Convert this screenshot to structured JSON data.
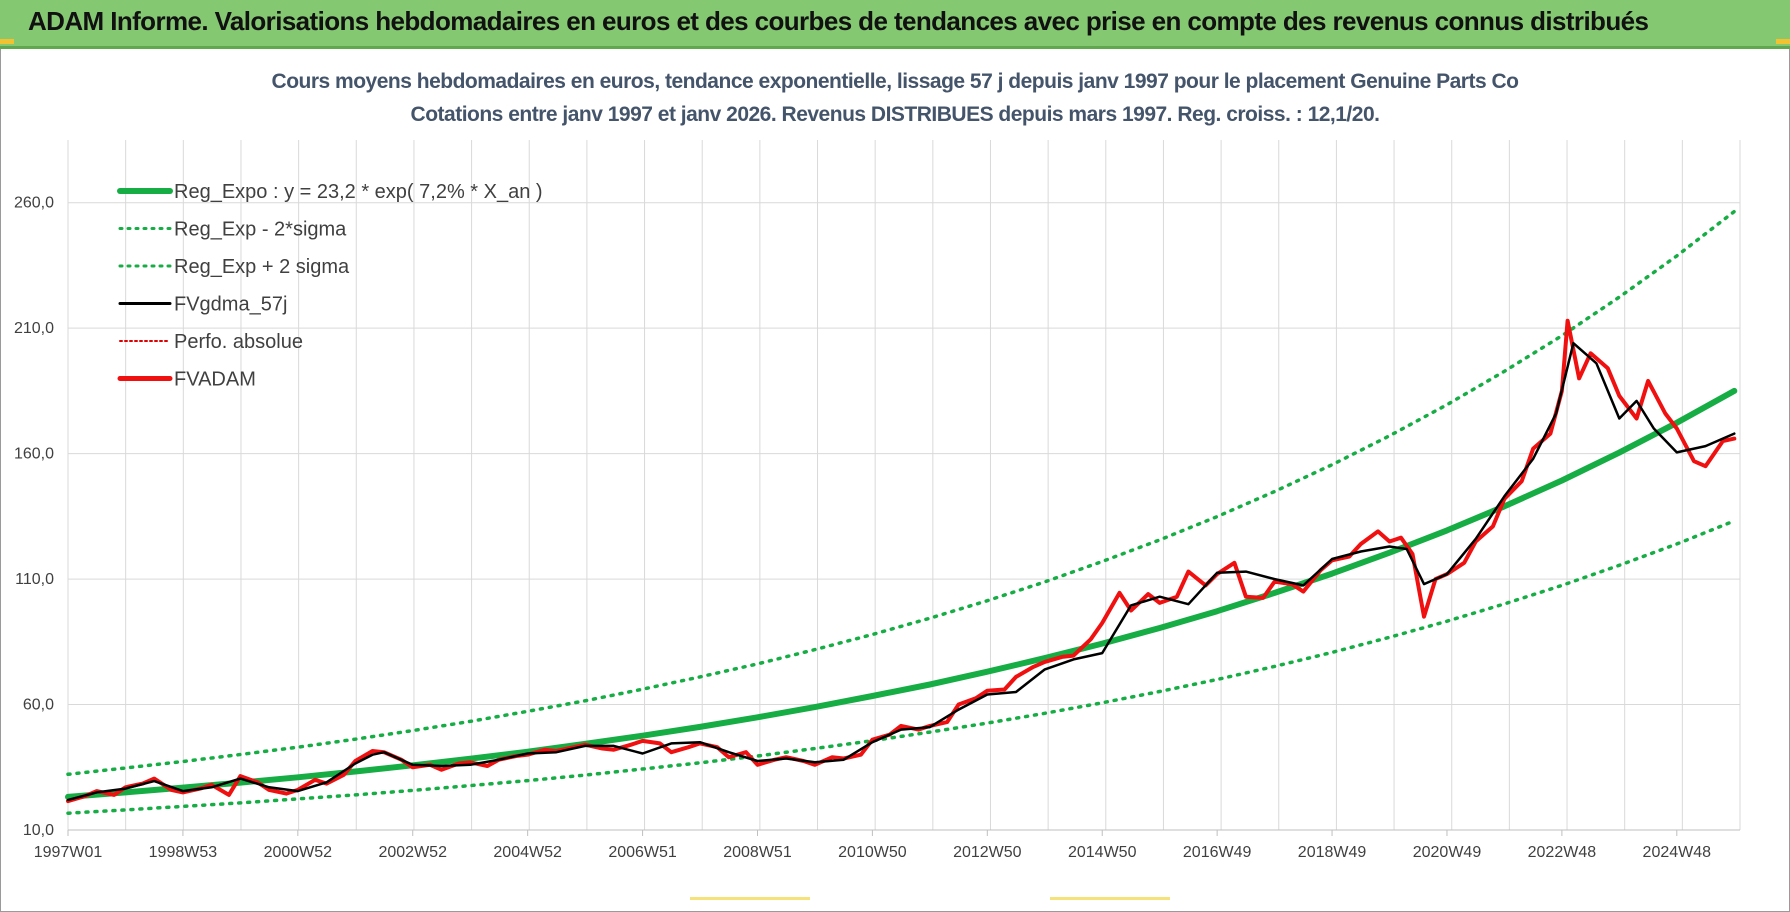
{
  "banner": {
    "title": "ADAM Informe. Valorisations hebdomadaires en euros et des courbes de tendances avec prise en compte des revenus connus distribués"
  },
  "chart_subtitle": {
    "line1": "Cours moyens hebdomadaires en euros, tendance exponentielle, lissage 57 j depuis janv 1997  pour le placement Genuine Parts Co",
    "line2": "Cotations entre janv 1997 et janv 2026. Revenus DISTRIBUES depuis mars 1997. Reg. croiss. : 12,1/20."
  },
  "colors": {
    "banner": "#85c872",
    "reg_expo": "#17ad45",
    "fvgdma": "#000000",
    "perfo": "#e00000",
    "fvadam": "#f01010",
    "grid": "#d9d9d9"
  },
  "chart_data": {
    "type": "line",
    "x_range": [
      1997.0,
      2026.1
    ],
    "y_range": [
      10,
      285
    ],
    "y_ticks": [
      "10,0",
      "60,0",
      "110,0",
      "160,0",
      "210,0",
      "260,0"
    ],
    "y_tick_values": [
      10,
      60,
      110,
      160,
      210,
      260
    ],
    "x_tick_labels": [
      "1997W01",
      "1998W53",
      "2000W52",
      "2002W52",
      "2004W52",
      "2006W51",
      "2008W51",
      "2010W50",
      "2012W50",
      "2014W50",
      "2016W49",
      "2018W49",
      "2020W49",
      "2022W48",
      "2024W48"
    ],
    "x_tick_years": [
      1997.0,
      1999.0,
      2001.0,
      2003.0,
      2005.0,
      2007.0,
      2009.0,
      2011.0,
      2013.0,
      2015.0,
      2017.0,
      2019.0,
      2021.0,
      2023.0,
      2025.0
    ],
    "grid": true,
    "legend_position": "top-left",
    "legend": [
      "Reg_Expo : y = 23,2 * exp( 7,2% *  X_an )",
      "Reg_Exp - 2*sigma",
      "Reg_Exp + 2 sigma",
      "FVgdma_57j",
      "Perfo. absolue",
      "FVADAM"
    ],
    "series": [
      {
        "name": "Reg_Expo : y = 23,2 * exp( 7,2% *  X_an )",
        "x": [
          1997.0,
          1998.0,
          1999.0,
          2000.0,
          2001.0,
          2002.0,
          2003.0,
          2004.0,
          2005.0,
          2006.0,
          2007.0,
          2008.0,
          2009.0,
          2010.0,
          2011.0,
          2012.0,
          2013.0,
          2014.0,
          2015.0,
          2016.0,
          2017.0,
          2018.0,
          2019.0,
          2020.0,
          2021.0,
          2022.0,
          2023.0,
          2024.0,
          2025.0,
          2026.0
        ],
        "y": [
          23.2,
          25.0,
          26.9,
          28.9,
          31.0,
          33.3,
          35.8,
          38.4,
          41.2,
          44.3,
          47.6,
          51.1,
          54.9,
          59.0,
          63.4,
          68.0,
          73.1,
          78.5,
          84.3,
          90.5,
          97.2,
          104.5,
          112.2,
          120.5,
          129.4,
          139.0,
          149.3,
          160.4,
          172.3,
          185.0
        ]
      },
      {
        "name": "Reg_Exp - 2*sigma",
        "x": [
          1997.0,
          1998.0,
          1999.0,
          2000.0,
          2001.0,
          2002.0,
          2003.0,
          2004.0,
          2005.0,
          2006.0,
          2007.0,
          2008.0,
          2009.0,
          2010.0,
          2011.0,
          2012.0,
          2013.0,
          2014.0,
          2015.0,
          2016.0,
          2017.0,
          2018.0,
          2019.0,
          2020.0,
          2021.0,
          2022.0,
          2023.0,
          2024.0,
          2025.0,
          2026.0
        ],
        "y": [
          16.7,
          18.0,
          19.4,
          20.8,
          22.4,
          24.0,
          25.8,
          27.7,
          29.7,
          31.9,
          34.3,
          36.8,
          39.5,
          42.5,
          45.6,
          49.0,
          52.6,
          56.5,
          60.7,
          65.2,
          70.0,
          75.2,
          80.8,
          86.8,
          93.2,
          100.1,
          107.5,
          115.5,
          124.0,
          133.2
        ]
      },
      {
        "name": "Reg_Exp + 2 sigma",
        "x": [
          1997.0,
          1998.0,
          1999.0,
          2000.0,
          2001.0,
          2002.0,
          2003.0,
          2004.0,
          2005.0,
          2006.0,
          2007.0,
          2008.0,
          2009.0,
          2010.0,
          2011.0,
          2012.0,
          2013.0,
          2014.0,
          2015.0,
          2016.0,
          2017.0,
          2018.0,
          2019.0,
          2020.0,
          2021.0,
          2022.0,
          2023.0,
          2024.0,
          2025.0,
          2026.0
        ],
        "y": [
          32.2,
          34.7,
          37.3,
          40.1,
          43.0,
          46.2,
          49.6,
          53.3,
          57.3,
          61.5,
          66.1,
          71.0,
          76.2,
          81.9,
          87.9,
          94.4,
          101.4,
          108.9,
          117.0,
          125.6,
          134.9,
          144.9,
          155.6,
          167.1,
          179.5,
          192.8,
          207.0,
          222.4,
          238.8,
          256.5
        ]
      },
      {
        "name": "FVgdma_57j",
        "x": [
          1997.0,
          1997.5,
          1998.0,
          1998.5,
          1999.0,
          1999.5,
          2000.0,
          2000.5,
          2001.0,
          2001.5,
          2002.0,
          2002.3,
          2002.5,
          2003.0,
          2003.5,
          2004.0,
          2004.5,
          2005.0,
          2005.5,
          2006.0,
          2006.5,
          2007.0,
          2007.5,
          2008.0,
          2008.5,
          2009.0,
          2009.5,
          2010.0,
          2010.5,
          2011.0,
          2011.5,
          2012.0,
          2012.5,
          2013.0,
          2013.5,
          2014.0,
          2014.5,
          2015.0,
          2015.5,
          2016.0,
          2016.5,
          2017.0,
          2017.5,
          2018.0,
          2018.5,
          2019.0,
          2019.5,
          2020.0,
          2020.3,
          2020.6,
          2021.0,
          2021.5,
          2022.0,
          2022.5,
          2022.9,
          2023.2,
          2023.6,
          2024.0,
          2024.3,
          2024.6,
          2025.0,
          2025.5,
          2026.0
        ],
        "y": [
          22.0,
          25.0,
          26.5,
          29.5,
          25.5,
          27.0,
          30.5,
          27.0,
          25.5,
          29.0,
          36.5,
          40.0,
          41.0,
          36.0,
          35.5,
          36.0,
          38.0,
          40.5,
          41.0,
          43.5,
          43.5,
          40.5,
          44.5,
          45.0,
          41.0,
          37.5,
          38.5,
          37.0,
          38.0,
          45.0,
          50.0,
          51.0,
          58.0,
          64.0,
          65.0,
          74.0,
          78.0,
          80.5,
          99.5,
          103.0,
          100.0,
          112.5,
          113.0,
          110.0,
          107.5,
          118.0,
          121.0,
          123.0,
          122.0,
          108.0,
          112.0,
          126.0,
          143.0,
          158.0,
          176.0,
          204.0,
          196.0,
          174.0,
          181.0,
          170.0,
          160.5,
          163.0,
          168.0
        ]
      },
      {
        "name": "FVADAM",
        "x": [
          1997.0,
          1997.3,
          1997.5,
          1997.8,
          1998.0,
          1998.3,
          1998.5,
          1998.8,
          1999.0,
          1999.3,
          1999.5,
          1999.8,
          2000.0,
          2000.3,
          2000.5,
          2000.8,
          2001.0,
          2001.3,
          2001.5,
          2001.8,
          2002.0,
          2002.3,
          2002.5,
          2002.8,
          2003.0,
          2003.3,
          2003.5,
          2003.8,
          2004.0,
          2004.3,
          2004.5,
          2004.8,
          2005.0,
          2005.3,
          2005.5,
          2005.8,
          2006.0,
          2006.3,
          2006.5,
          2006.8,
          2007.0,
          2007.3,
          2007.5,
          2007.8,
          2008.0,
          2008.3,
          2008.5,
          2008.8,
          2009.0,
          2009.3,
          2009.5,
          2009.8,
          2010.0,
          2010.3,
          2010.5,
          2010.8,
          2011.0,
          2011.3,
          2011.5,
          2011.8,
          2012.0,
          2012.3,
          2012.5,
          2012.8,
          2013.0,
          2013.3,
          2013.5,
          2013.8,
          2014.0,
          2014.3,
          2014.5,
          2014.8,
          2015.0,
          2015.3,
          2015.5,
          2015.8,
          2016.0,
          2016.3,
          2016.5,
          2016.8,
          2017.0,
          2017.3,
          2017.5,
          2017.8,
          2018.0,
          2018.3,
          2018.5,
          2018.8,
          2019.0,
          2019.3,
          2019.5,
          2019.8,
          2020.0,
          2020.2,
          2020.4,
          2020.6,
          2020.8,
          2021.0,
          2021.3,
          2021.5,
          2021.8,
          2022.0,
          2022.3,
          2022.5,
          2022.8,
          2023.0,
          2023.1,
          2023.3,
          2023.5,
          2023.8,
          2024.0,
          2024.3,
          2024.5,
          2024.8,
          2025.0,
          2025.3,
          2025.5,
          2025.8,
          2026.0
        ],
        "y": [
          21.5,
          23.5,
          25.5,
          24.0,
          27.0,
          28.5,
          30.5,
          26.0,
          25.0,
          26.5,
          28.0,
          24.0,
          31.5,
          29.0,
          26.0,
          24.5,
          26.0,
          30.0,
          28.5,
          32.0,
          37.5,
          41.5,
          41.0,
          38.0,
          35.0,
          36.0,
          34.0,
          36.5,
          37.0,
          35.5,
          38.0,
          39.5,
          40.0,
          42.0,
          41.5,
          43.0,
          44.0,
          42.5,
          42.0,
          44.0,
          45.5,
          44.5,
          41.0,
          43.0,
          44.5,
          43.0,
          39.0,
          41.0,
          36.0,
          38.0,
          39.0,
          37.5,
          36.0,
          39.0,
          38.5,
          40.0,
          46.0,
          48.0,
          51.5,
          50.0,
          51.5,
          53.0,
          60.0,
          62.5,
          65.5,
          66.0,
          71.0,
          75.0,
          77.0,
          79.0,
          79.5,
          86.0,
          92.5,
          104.5,
          97.5,
          104.0,
          100.5,
          103.0,
          113.0,
          107.5,
          112.0,
          116.5,
          103.0,
          102.5,
          109.0,
          108.0,
          105.0,
          113.5,
          117.5,
          119.0,
          124.0,
          129.0,
          125.0,
          126.5,
          120.0,
          95.0,
          110.0,
          112.0,
          116.5,
          125.0,
          131.0,
          142.0,
          149.0,
          162.0,
          168.0,
          185.0,
          213.0,
          190.0,
          200.0,
          194.0,
          183.0,
          174.0,
          189.0,
          176.0,
          170.0,
          157.0,
          155.0,
          165.0,
          166.0
        ]
      }
    ]
  }
}
